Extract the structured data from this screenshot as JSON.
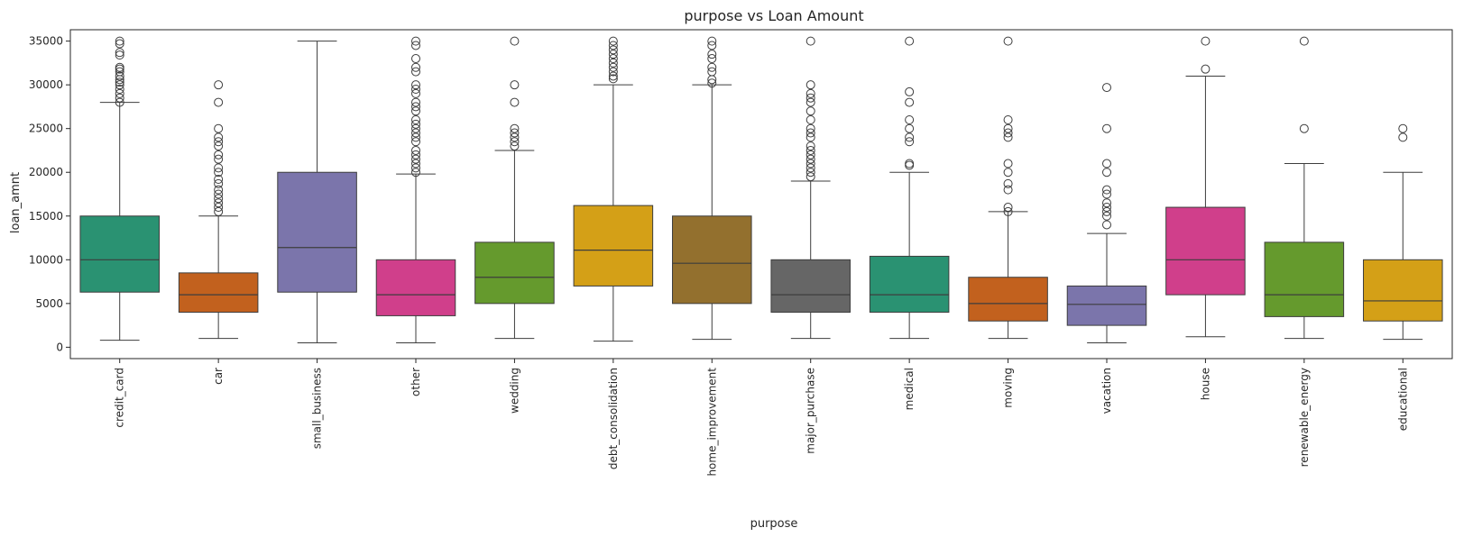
{
  "chart_data": {
    "type": "box",
    "title": "purpose vs Loan Amount",
    "xlabel": "purpose",
    "ylabel": "loan_amnt",
    "ylim": [
      -1300,
      36300
    ],
    "yticks": [
      0,
      5000,
      10000,
      15000,
      20000,
      25000,
      30000,
      35000
    ],
    "grid": false,
    "categories": [
      "credit_card",
      "car",
      "small_business",
      "other",
      "wedding",
      "debt_consolidation",
      "home_improvement",
      "major_purchase",
      "medical",
      "moving",
      "vacation",
      "house",
      "renewable_energy",
      "educational"
    ],
    "boxes": [
      {
        "category": "credit_card",
        "color": "#2a9272",
        "whisker_low": 800,
        "q1": 6300,
        "median": 10000,
        "q3": 15000,
        "whisker_high": 28000,
        "outliers": [
          28000,
          28500,
          29000,
          29500,
          30000,
          30300,
          30600,
          31000,
          31500,
          31800,
          32000,
          33400,
          33700,
          34700,
          35000
        ]
      },
      {
        "category": "car",
        "color": "#c2611e",
        "whisker_low": 1000,
        "q1": 4000,
        "median": 6000,
        "q3": 8500,
        "whisker_high": 15000,
        "outliers": [
          15500,
          16000,
          16500,
          17000,
          17500,
          18000,
          18700,
          19200,
          20000,
          20500,
          21500,
          22000,
          23000,
          23500,
          24000,
          25000,
          28000,
          30000
        ]
      },
      {
        "category": "small_business",
        "color": "#7b75ab",
        "whisker_low": 500,
        "q1": 6300,
        "median": 11400,
        "q3": 20000,
        "whisker_high": 35000,
        "outliers": []
      },
      {
        "category": "other",
        "color": "#d03f8b",
        "whisker_low": 500,
        "q1": 3600,
        "median": 6000,
        "q3": 10000,
        "whisker_high": 19800,
        "outliers": [
          20000,
          20500,
          21000,
          21500,
          22000,
          22500,
          23500,
          24000,
          24500,
          25000,
          25500,
          26000,
          27000,
          27500,
          28000,
          29000,
          29500,
          30000,
          31500,
          32000,
          33000,
          34500,
          35000
        ]
      },
      {
        "category": "wedding",
        "color": "#659a2d",
        "whisker_low": 1000,
        "q1": 5000,
        "median": 8000,
        "q3": 12000,
        "whisker_high": 22500,
        "outliers": [
          23000,
          23500,
          24000,
          24500,
          25000,
          28000,
          30000,
          35000
        ]
      },
      {
        "category": "debt_consolidation",
        "color": "#d4a017",
        "whisker_low": 700,
        "q1": 7000,
        "median": 11100,
        "q3": 16200,
        "whisker_high": 30000,
        "outliers": [
          30700,
          31000,
          31500,
          32000,
          32500,
          33000,
          33500,
          34000,
          34500,
          35000
        ]
      },
      {
        "category": "home_improvement",
        "color": "#93702e",
        "whisker_low": 900,
        "q1": 5000,
        "median": 9600,
        "q3": 15000,
        "whisker_high": 30000,
        "outliers": [
          30200,
          30600,
          31500,
          32000,
          33000,
          33500,
          34500,
          35000
        ]
      },
      {
        "category": "major_purchase",
        "color": "#666666",
        "whisker_low": 1000,
        "q1": 4000,
        "median": 6000,
        "q3": 10000,
        "whisker_high": 19000,
        "outliers": [
          19500,
          20000,
          20500,
          21000,
          21500,
          22000,
          22500,
          23000,
          24000,
          24500,
          25000,
          26000,
          27000,
          28000,
          28500,
          29000,
          30000,
          35000
        ]
      },
      {
        "category": "medical",
        "color": "#2a9272",
        "whisker_low": 1000,
        "q1": 4000,
        "median": 6000,
        "q3": 10400,
        "whisker_high": 20000,
        "outliers": [
          20800,
          21000,
          23500,
          24000,
          25000,
          26000,
          28000,
          29200,
          35000
        ]
      },
      {
        "category": "moving",
        "color": "#c2611e",
        "whisker_low": 1000,
        "q1": 3000,
        "median": 5000,
        "q3": 8000,
        "whisker_high": 15500,
        "outliers": [
          15500,
          16000,
          18000,
          18700,
          20000,
          21000,
          24000,
          24500,
          25000,
          26000,
          35000
        ]
      },
      {
        "category": "vacation",
        "color": "#7b75ab",
        "whisker_low": 500,
        "q1": 2500,
        "median": 4900,
        "q3": 7000,
        "whisker_high": 13000,
        "outliers": [
          14000,
          15000,
          15500,
          16000,
          16500,
          17500,
          18000,
          20000,
          21000,
          25000,
          29700
        ]
      },
      {
        "category": "house",
        "color": "#d03f8b",
        "whisker_low": 1200,
        "q1": 6000,
        "median": 10000,
        "q3": 16000,
        "whisker_high": 31000,
        "outliers": [
          31800,
          35000
        ]
      },
      {
        "category": "renewable_energy",
        "color": "#659a2d",
        "whisker_low": 1000,
        "q1": 3500,
        "median": 6000,
        "q3": 12000,
        "whisker_high": 21000,
        "outliers": [
          25000,
          35000
        ]
      },
      {
        "category": "educational",
        "color": "#d4a017",
        "whisker_low": 900,
        "q1": 3000,
        "median": 5300,
        "q3": 10000,
        "whisker_high": 20000,
        "outliers": [
          24000,
          25000
        ]
      }
    ]
  }
}
